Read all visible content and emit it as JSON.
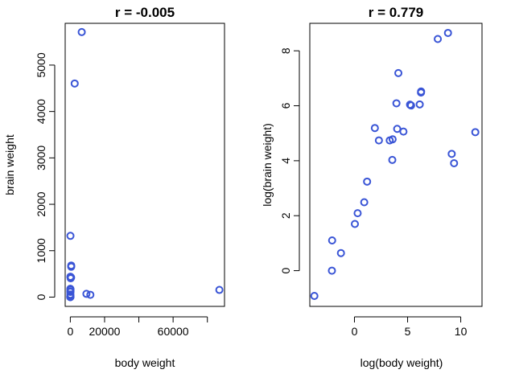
{
  "chart_data": [
    {
      "type": "scatter",
      "title": "r =  -0.005",
      "xlabel": "body weight",
      "ylabel": "brain weight",
      "xlim": [
        -3000,
        90000
      ],
      "ylim": [
        -200,
        5900
      ],
      "xticks": [
        0,
        20000,
        40000,
        60000,
        80000
      ],
      "xtick_labels": [
        "0",
        "20000",
        "",
        "60000",
        ""
      ],
      "yticks": [
        0,
        1000,
        2000,
        3000,
        4000,
        5000
      ],
      "ytick_labels": [
        "0",
        "1000",
        "2000",
        "3000",
        "4000",
        "5000"
      ],
      "color": "#3a55d6",
      "marker": "open-circle",
      "grid": false,
      "points": [
        {
          "x": 1.35,
          "y": 8.1
        },
        {
          "x": 465,
          "y": 423
        },
        {
          "x": 36.33,
          "y": 119.5
        },
        {
          "x": 27.66,
          "y": 115
        },
        {
          "x": 1.04,
          "y": 5.5
        },
        {
          "x": 11700,
          "y": 50
        },
        {
          "x": 2547,
          "y": 4603
        },
        {
          "x": 187.1,
          "y": 419
        },
        {
          "x": 521,
          "y": 655
        },
        {
          "x": 10,
          "y": 115
        },
        {
          "x": 3.3,
          "y": 25.6
        },
        {
          "x": 529,
          "y": 680
        },
        {
          "x": 207,
          "y": 406
        },
        {
          "x": 62,
          "y": 1320
        },
        {
          "x": 6654,
          "y": 5712
        },
        {
          "x": 9400,
          "y": 70
        },
        {
          "x": 6.8,
          "y": 179
        },
        {
          "x": 35,
          "y": 56
        },
        {
          "x": 0.12,
          "y": 1
        },
        {
          "x": 0.023,
          "y": 0.4
        },
        {
          "x": 2.5,
          "y": 12.1
        },
        {
          "x": 55.5,
          "y": 175
        },
        {
          "x": 100,
          "y": 157
        },
        {
          "x": 52.16,
          "y": 440
        },
        {
          "x": 87000,
          "y": 154.5
        },
        {
          "x": 0.28,
          "y": 1.9
        },
        {
          "x": 0.122,
          "y": 3
        }
      ]
    },
    {
      "type": "scatter",
      "title": "r =  0.779",
      "xlabel": "log(body weight)",
      "ylabel": "log(brain weight)",
      "xlim": [
        -4.2,
        12.0
      ],
      "ylim": [
        -1.3,
        9.0
      ],
      "xticks": [
        0,
        5,
        10
      ],
      "xtick_labels": [
        "0",
        "5",
        "10"
      ],
      "yticks": [
        0,
        2,
        4,
        6,
        8
      ],
      "ytick_labels": [
        "0",
        "2",
        "4",
        "6",
        "8"
      ],
      "color": "#3a55d6",
      "marker": "open-circle",
      "grid": false,
      "points": [
        {
          "x": 0.3,
          "y": 2.09
        },
        {
          "x": 6.14,
          "y": 6.05
        },
        {
          "x": 3.59,
          "y": 4.78
        },
        {
          "x": 3.32,
          "y": 4.74
        },
        {
          "x": 0.04,
          "y": 1.7
        },
        {
          "x": 9.37,
          "y": 3.91
        },
        {
          "x": 7.84,
          "y": 8.43
        },
        {
          "x": 5.23,
          "y": 6.04
        },
        {
          "x": 6.26,
          "y": 6.48
        },
        {
          "x": 2.3,
          "y": 4.74
        },
        {
          "x": 1.19,
          "y": 3.24
        },
        {
          "x": 6.27,
          "y": 6.52
        },
        {
          "x": 5.33,
          "y": 6.01
        },
        {
          "x": 4.13,
          "y": 7.19
        },
        {
          "x": 8.8,
          "y": 8.65
        },
        {
          "x": 9.15,
          "y": 4.25
        },
        {
          "x": 1.92,
          "y": 5.19
        },
        {
          "x": 3.56,
          "y": 4.03
        },
        {
          "x": -2.12,
          "y": 0.0
        },
        {
          "x": -3.77,
          "y": -0.92
        },
        {
          "x": 0.92,
          "y": 2.49
        },
        {
          "x": 4.02,
          "y": 5.16
        },
        {
          "x": 4.61,
          "y": 5.06
        },
        {
          "x": 3.95,
          "y": 6.09
        },
        {
          "x": 11.37,
          "y": 5.04
        },
        {
          "x": -1.27,
          "y": 0.64
        },
        {
          "x": -2.1,
          "y": 1.1
        }
      ]
    }
  ]
}
